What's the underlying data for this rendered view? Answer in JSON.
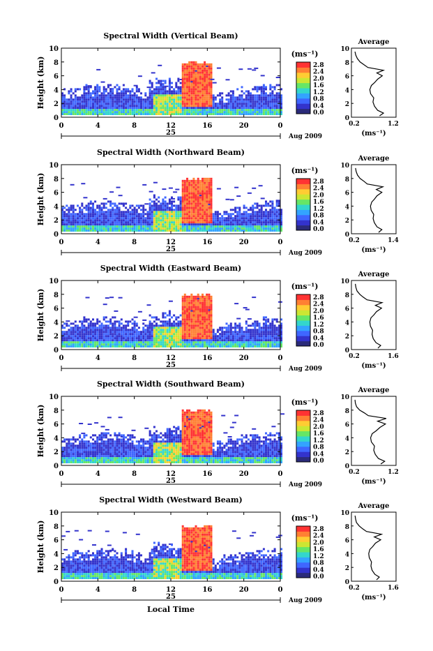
{
  "chart_data": [
    {
      "type": "heatmap",
      "title": "Spectral Width (Vertical Beam)",
      "ylabel": "Height (km)",
      "ylim": [
        0,
        10
      ],
      "yticks": [
        "0",
        "2",
        "4",
        "6",
        "8",
        "10"
      ],
      "xlim": [
        0,
        24
      ],
      "xticks": [
        "0",
        "4",
        "8",
        "12",
        "16",
        "20",
        "0"
      ],
      "day_label": "25",
      "date_label": "Aug 2009",
      "colorbar_unit": "(ms⁻¹)",
      "colorbar_ticks": [
        "0.0",
        "0.4",
        "0.8",
        "1.2",
        "1.6",
        "2.0",
        "2.4",
        "2.8"
      ],
      "profile": {
        "title": "Average",
        "xlabel": "(ms⁻¹)",
        "xticks": [
          "0.2",
          "1.2"
        ],
        "x_range": [
          0.2,
          1.2
        ],
        "yticks": [
          "0",
          "2",
          "4",
          "6",
          "8",
          "10"
        ],
        "points": [
          [
            0.85,
            0.2
          ],
          [
            0.95,
            0.6
          ],
          [
            0.8,
            1.0
          ],
          [
            0.72,
            1.6
          ],
          [
            0.68,
            2.2
          ],
          [
            0.7,
            2.8
          ],
          [
            0.62,
            3.4
          ],
          [
            0.6,
            4.0
          ],
          [
            0.64,
            4.6
          ],
          [
            0.72,
            5.0
          ],
          [
            0.8,
            5.5
          ],
          [
            0.92,
            6.0
          ],
          [
            0.78,
            6.4
          ],
          [
            0.95,
            6.8
          ],
          [
            0.55,
            7.2
          ],
          [
            0.45,
            7.6
          ],
          [
            0.35,
            8.0
          ],
          [
            0.28,
            8.5
          ],
          [
            0.24,
            9.0
          ],
          [
            0.22,
            9.5
          ]
        ]
      }
    },
    {
      "type": "heatmap",
      "title": "Spectral Width (Northward Beam)",
      "ylabel": "Height (km)",
      "ylim": [
        0,
        10
      ],
      "yticks": [
        "0",
        "2",
        "4",
        "6",
        "8",
        "10"
      ],
      "xlim": [
        0,
        24
      ],
      "xticks": [
        "0",
        "4",
        "8",
        "12",
        "16",
        "20",
        "0"
      ],
      "day_label": "25",
      "date_label": "Aug 2009",
      "colorbar_unit": "(ms⁻¹)",
      "colorbar_ticks": [
        "0.0",
        "0.4",
        "0.8",
        "1.2",
        "1.6",
        "2.0",
        "2.4",
        "2.8"
      ],
      "profile": {
        "title": "Average",
        "xlabel": "(ms⁻¹)",
        "xticks": [
          "0.2",
          "1.4"
        ],
        "x_range": [
          0.2,
          1.4
        ],
        "yticks": [
          "0",
          "2",
          "4",
          "6",
          "8",
          "10"
        ],
        "points": [
          [
            0.95,
            0.2
          ],
          [
            1.05,
            0.6
          ],
          [
            0.9,
            1.0
          ],
          [
            0.82,
            1.6
          ],
          [
            0.78,
            2.2
          ],
          [
            0.8,
            2.8
          ],
          [
            0.72,
            3.4
          ],
          [
            0.7,
            4.0
          ],
          [
            0.74,
            4.6
          ],
          [
            0.82,
            5.0
          ],
          [
            0.9,
            5.5
          ],
          [
            1.05,
            6.0
          ],
          [
            0.88,
            6.4
          ],
          [
            1.08,
            6.8
          ],
          [
            0.6,
            7.2
          ],
          [
            0.5,
            7.6
          ],
          [
            0.38,
            8.0
          ],
          [
            0.3,
            8.5
          ],
          [
            0.26,
            9.0
          ],
          [
            0.24,
            9.5
          ]
        ]
      }
    },
    {
      "type": "heatmap",
      "title": "Spectral Width (Eastward Beam)",
      "ylabel": "Height (km)",
      "ylim": [
        0,
        10
      ],
      "yticks": [
        "0",
        "2",
        "4",
        "6",
        "8",
        "10"
      ],
      "xlim": [
        0,
        24
      ],
      "xticks": [
        "0",
        "4",
        "8",
        "12",
        "16",
        "20",
        "0"
      ],
      "day_label": "25",
      "date_label": "Aug 2009",
      "colorbar_unit": "(ms⁻¹)",
      "colorbar_ticks": [
        "0.0",
        "0.4",
        "0.8",
        "1.2",
        "1.6",
        "2.0",
        "2.4",
        "2.8"
      ],
      "profile": {
        "title": "Average",
        "xlabel": "(ms⁻¹)",
        "xticks": [
          "0.2",
          "1.6"
        ],
        "x_range": [
          0.2,
          1.6
        ],
        "yticks": [
          "0",
          "2",
          "4",
          "6",
          "8",
          "10"
        ],
        "points": [
          [
            1.05,
            0.2
          ],
          [
            1.15,
            0.6
          ],
          [
            0.98,
            1.0
          ],
          [
            0.88,
            1.6
          ],
          [
            0.84,
            2.2
          ],
          [
            0.86,
            2.8
          ],
          [
            0.78,
            3.4
          ],
          [
            0.76,
            4.0
          ],
          [
            0.8,
            4.6
          ],
          [
            0.9,
            5.0
          ],
          [
            1.0,
            5.5
          ],
          [
            1.18,
            6.0
          ],
          [
            0.96,
            6.4
          ],
          [
            1.2,
            6.8
          ],
          [
            0.66,
            7.2
          ],
          [
            0.52,
            7.6
          ],
          [
            0.4,
            8.0
          ],
          [
            0.3,
            8.5
          ],
          [
            0.26,
            9.0
          ],
          [
            0.24,
            9.5
          ]
        ]
      }
    },
    {
      "type": "heatmap",
      "title": "Spectral Width (Southward Beam)",
      "ylabel": "Height (km)",
      "ylim": [
        0,
        10
      ],
      "yticks": [
        "0",
        "2",
        "4",
        "6",
        "8",
        "10"
      ],
      "xlim": [
        0,
        24
      ],
      "xticks": [
        "0",
        "4",
        "8",
        "12",
        "16",
        "20",
        "0"
      ],
      "day_label": "25",
      "date_label": "Aug 2009",
      "colorbar_unit": "(ms⁻¹)",
      "colorbar_ticks": [
        "0.0",
        "0.4",
        "0.8",
        "1.2",
        "1.6",
        "2.0",
        "2.4",
        "2.8"
      ],
      "profile": {
        "title": "Average",
        "xlabel": "(ms⁻¹)",
        "xticks": [
          "0.2",
          "1.2"
        ],
        "x_range": [
          0.2,
          1.2
        ],
        "yticks": [
          "0",
          "2",
          "4",
          "6",
          "8",
          "10"
        ],
        "points": [
          [
            0.88,
            0.2
          ],
          [
            0.98,
            0.6
          ],
          [
            0.82,
            1.0
          ],
          [
            0.74,
            1.6
          ],
          [
            0.7,
            2.2
          ],
          [
            0.72,
            2.8
          ],
          [
            0.64,
            3.4
          ],
          [
            0.62,
            4.0
          ],
          [
            0.66,
            4.6
          ],
          [
            0.76,
            5.0
          ],
          [
            0.86,
            5.5
          ],
          [
            1.0,
            6.0
          ],
          [
            0.8,
            6.4
          ],
          [
            1.02,
            6.8
          ],
          [
            0.56,
            7.2
          ],
          [
            0.46,
            7.6
          ],
          [
            0.34,
            8.0
          ],
          [
            0.26,
            8.5
          ],
          [
            0.23,
            9.0
          ],
          [
            0.22,
            9.5
          ]
        ]
      }
    },
    {
      "type": "heatmap",
      "title": "Spectral Width (Westward Beam)",
      "ylabel": "Height (km)",
      "ylim": [
        0,
        10
      ],
      "yticks": [
        "0",
        "2",
        "4",
        "6",
        "8",
        "10"
      ],
      "xlim": [
        0,
        24
      ],
      "xticks": [
        "0",
        "4",
        "8",
        "12",
        "16",
        "20",
        "0"
      ],
      "day_label": "25",
      "date_label": "Aug 2009",
      "xlabel": "Local Time",
      "colorbar_unit": "(ms⁻¹)",
      "colorbar_ticks": [
        "0.0",
        "0.4",
        "0.8",
        "1.2",
        "1.6",
        "2.0",
        "2.4",
        "2.8"
      ],
      "profile": {
        "title": "Average",
        "xlabel": "(ms⁻¹)",
        "xticks": [
          "0.2",
          "1.6"
        ],
        "x_range": [
          0.2,
          1.6
        ],
        "yticks": [
          "0",
          "2",
          "4",
          "6",
          "8",
          "10"
        ],
        "points": [
          [
            1.0,
            0.2
          ],
          [
            1.1,
            0.6
          ],
          [
            0.94,
            1.0
          ],
          [
            0.84,
            1.6
          ],
          [
            0.8,
            2.2
          ],
          [
            0.82,
            2.8
          ],
          [
            0.74,
            3.4
          ],
          [
            0.72,
            4.0
          ],
          [
            0.76,
            4.6
          ],
          [
            0.86,
            5.0
          ],
          [
            0.96,
            5.5
          ],
          [
            1.15,
            6.0
          ],
          [
            0.92,
            6.4
          ],
          [
            1.18,
            6.8
          ],
          [
            0.64,
            7.2
          ],
          [
            0.5,
            7.6
          ],
          [
            0.38,
            8.0
          ],
          [
            0.28,
            8.5
          ],
          [
            0.25,
            9.0
          ],
          [
            0.23,
            9.5
          ]
        ]
      }
    }
  ],
  "colormap": [
    "#2b2b7a",
    "#3333cc",
    "#3f66ff",
    "#33a3ff",
    "#33d6cc",
    "#66e666",
    "#cce633",
    "#ffcc33",
    "#ff8033",
    "#ff3333"
  ]
}
